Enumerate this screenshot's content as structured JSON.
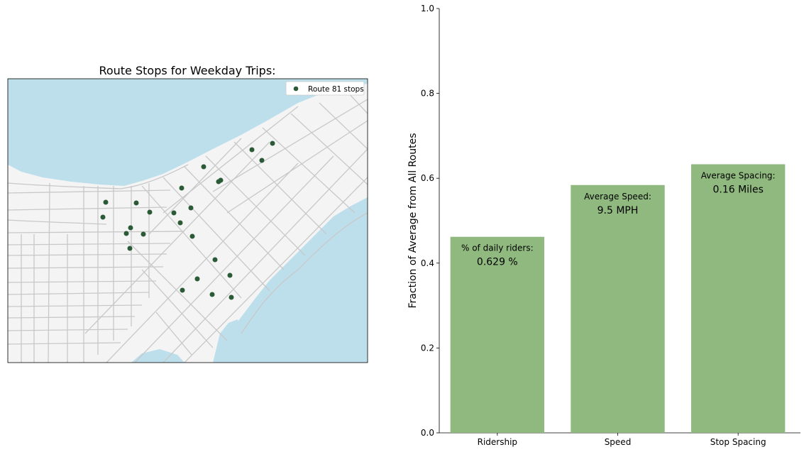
{
  "map": {
    "title": "Route Stops for Weekday Trips:",
    "legend_label": "Route 81 stops",
    "colors": {
      "water": "#bddfeb",
      "land": "#f4f4f4",
      "street": "#c8c8c8",
      "stop": "#2b5a36"
    }
  },
  "chart_data": {
    "type": "bar",
    "categories": [
      "Ridership",
      "Speed",
      "Stop Spacing"
    ],
    "values": [
      0.462,
      0.584,
      0.633
    ],
    "ylabel": "Fraction of Average from All Routes",
    "xlabel": "",
    "ylim": [
      0,
      1.0
    ],
    "yticks": [
      "0.0",
      "0.2",
      "0.4",
      "0.6",
      "0.8",
      "1.0"
    ],
    "bar_annotations": [
      {
        "label": "% of daily riders:",
        "value": "0.629 %"
      },
      {
        "label": "Average Speed:",
        "value": "9.5 MPH"
      },
      {
        "label": "Average Spacing:",
        "value": "0.16 Miles"
      }
    ],
    "bar_color": "#8fb97e",
    "grid": false
  }
}
